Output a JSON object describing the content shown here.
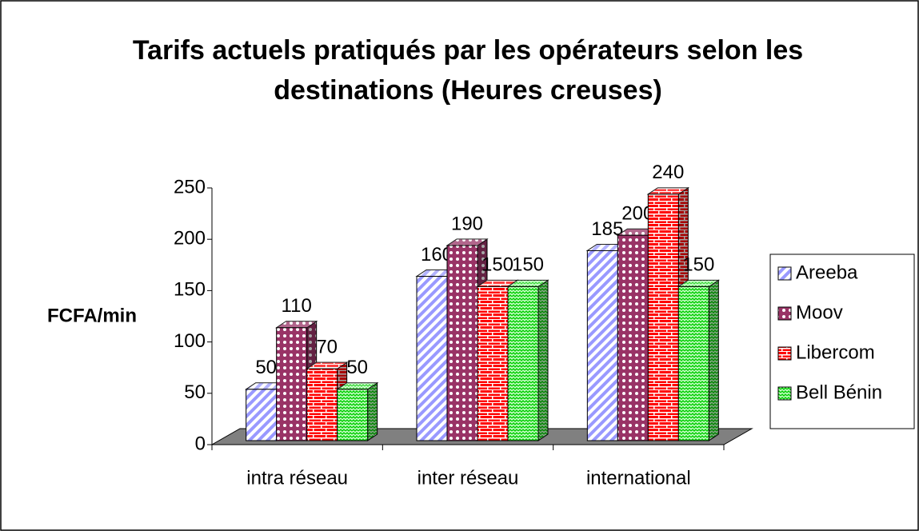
{
  "chart_data": {
    "type": "bar3d",
    "title": "Tarifs actuels pratiqués par les opérateurs selon les destinations (Heures creuses)",
    "y_label": "FCFA/min",
    "categories": [
      "intra réseau",
      "inter réseau",
      "international"
    ],
    "series": [
      {
        "name": "Areeba",
        "color": "#9999ff",
        "values": [
          50,
          160,
          185
        ]
      },
      {
        "name": "Moov",
        "color": "#993366",
        "values": [
          110,
          190,
          200
        ]
      },
      {
        "name": "Libercom",
        "color": "#ff0000",
        "values": [
          70,
          150,
          240
        ]
      },
      {
        "name": "Bell Bénin",
        "color": "#00cc00",
        "values": [
          50,
          150,
          150
        ]
      }
    ],
    "ylim": [
      0,
      250
    ],
    "yticks": [
      0,
      50,
      100,
      150,
      200,
      250
    ],
    "legend": "right"
  }
}
